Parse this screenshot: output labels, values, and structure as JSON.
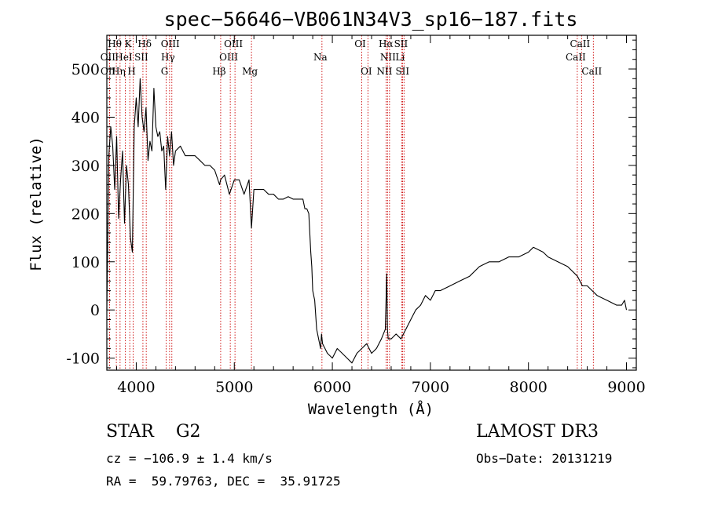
{
  "chart_data": {
    "type": "line",
    "title": "spec−56646−VB061N34V3_sp16−187.fits",
    "xlabel": "Wavelength (Å)",
    "ylabel": "Flux (relative)",
    "xlim": [
      3700,
      9100
    ],
    "ylim": [
      -125,
      570
    ],
    "xticks": [
      4000,
      5000,
      6000,
      7000,
      8000,
      9000
    ],
    "yticks": [
      -100,
      0,
      100,
      200,
      300,
      400,
      500
    ],
    "series": [
      {
        "name": "flux",
        "color": "#000000",
        "x": [
          3700,
          3720,
          3740,
          3760,
          3780,
          3800,
          3820,
          3840,
          3860,
          3880,
          3900,
          3920,
          3940,
          3960,
          3980,
          4000,
          4020,
          4040,
          4060,
          4080,
          4100,
          4120,
          4140,
          4160,
          4180,
          4200,
          4220,
          4240,
          4260,
          4280,
          4300,
          4320,
          4340,
          4360,
          4380,
          4400,
          4450,
          4500,
          4550,
          4600,
          4650,
          4700,
          4750,
          4800,
          4850,
          4860,
          4900,
          4950,
          5000,
          5050,
          5100,
          5150,
          5175,
          5200,
          5250,
          5300,
          5350,
          5400,
          5450,
          5500,
          5550,
          5600,
          5650,
          5700,
          5720,
          5740,
          5760,
          5780,
          5790,
          5800,
          5820,
          5840,
          5860,
          5880,
          5890,
          5900,
          5950,
          6000,
          6050,
          6100,
          6150,
          6200,
          6250,
          6300,
          6350,
          6400,
          6450,
          6500,
          6540,
          6555,
          6562,
          6570,
          6600,
          6650,
          6700,
          6750,
          6800,
          6850,
          6900,
          6950,
          7000,
          7050,
          7100,
          7200,
          7300,
          7400,
          7500,
          7600,
          7700,
          7800,
          7900,
          8000,
          8050,
          8100,
          8150,
          8200,
          8300,
          8400,
          8500,
          8550,
          8600,
          8650,
          8700,
          8800,
          8900,
          8950,
          8980,
          9000
        ],
        "values": [
          0,
          320,
          380,
          340,
          250,
          360,
          190,
          270,
          330,
          180,
          300,
          260,
          150,
          120,
          380,
          440,
          380,
          480,
          400,
          370,
          420,
          310,
          350,
          330,
          460,
          380,
          360,
          370,
          330,
          340,
          250,
          360,
          320,
          370,
          300,
          330,
          340,
          320,
          320,
          320,
          310,
          300,
          300,
          290,
          260,
          270,
          280,
          240,
          270,
          270,
          240,
          270,
          170,
          250,
          250,
          250,
          240,
          240,
          230,
          230,
          235,
          230,
          230,
          230,
          210,
          210,
          200,
          120,
          90,
          40,
          20,
          -40,
          -60,
          -80,
          -50,
          -70,
          -90,
          -100,
          -80,
          -90,
          -100,
          -110,
          -90,
          -80,
          -70,
          -90,
          -80,
          -60,
          -40,
          75,
          -40,
          -60,
          -60,
          -50,
          -60,
          -40,
          -20,
          0,
          10,
          30,
          20,
          40,
          40,
          50,
          60,
          70,
          90,
          100,
          100,
          110,
          110,
          120,
          130,
          125,
          120,
          110,
          100,
          90,
          70,
          50,
          50,
          40,
          30,
          20,
          10,
          10,
          20,
          0
        ]
      }
    ],
    "emission_lines": [
      {
        "label": "Hθ",
        "wavelength": 3797,
        "row": 1
      },
      {
        "label": "Hη",
        "wavelength": 3835,
        "row": 3
      },
      {
        "label": "OII",
        "wavelength": 3727,
        "row": 2
      },
      {
        "label": "OII",
        "wavelength": 3729,
        "row": 3
      },
      {
        "label": "HeI",
        "wavelength": 3889,
        "row": 2
      },
      {
        "label": "K",
        "wavelength": 3934,
        "row": 1
      },
      {
        "label": "H",
        "wavelength": 3969,
        "row": 3
      },
      {
        "label": "SII",
        "wavelength": 4068,
        "row": 2
      },
      {
        "label": "Hδ",
        "wavelength": 4102,
        "row": 1
      },
      {
        "label": "Hγ",
        "wavelength": 4340,
        "row": 2
      },
      {
        "label": "OIII",
        "wavelength": 4363,
        "row": 1
      },
      {
        "label": "G",
        "wavelength": 4305,
        "row": 3
      },
      {
        "label": "Hβ",
        "wavelength": 4861,
        "row": 3
      },
      {
        "label": "OIII",
        "wavelength": 4959,
        "row": 2
      },
      {
        "label": "OIII",
        "wavelength": 5007,
        "row": 1
      },
      {
        "label": "Mg",
        "wavelength": 5175,
        "row": 3
      },
      {
        "label": "Na",
        "wavelength": 5894,
        "row": 2
      },
      {
        "label": "OI",
        "wavelength": 6300,
        "row": 1
      },
      {
        "label": "OI",
        "wavelength": 6363,
        "row": 3
      },
      {
        "label": "NII",
        "wavelength": 6548,
        "row": 3
      },
      {
        "label": "Hα",
        "wavelength": 6563,
        "row": 1
      },
      {
        "label": "NII",
        "wavelength": 6583,
        "row": 2
      },
      {
        "label": "Li",
        "wavelength": 6707,
        "row": 2
      },
      {
        "label": "SII",
        "wavelength": 6716,
        "row": 1
      },
      {
        "label": "SII",
        "wavelength": 6731,
        "row": 3
      },
      {
        "label": "CaII",
        "wavelength": 8498,
        "row": 2
      },
      {
        "label": "CaII",
        "wavelength": 8542,
        "row": 1
      },
      {
        "label": "CaII",
        "wavelength": 8662,
        "row": 3
      }
    ],
    "line_color": "#cc0000"
  },
  "info": {
    "classification": "STAR    G2",
    "survey": "LAMOST DR3",
    "cz": "cz = −106.9 ± 1.4 km/s",
    "obs_date": "Obs−Date: 20131219",
    "coords": "RA =  59.79763, DEC =  35.91725"
  }
}
